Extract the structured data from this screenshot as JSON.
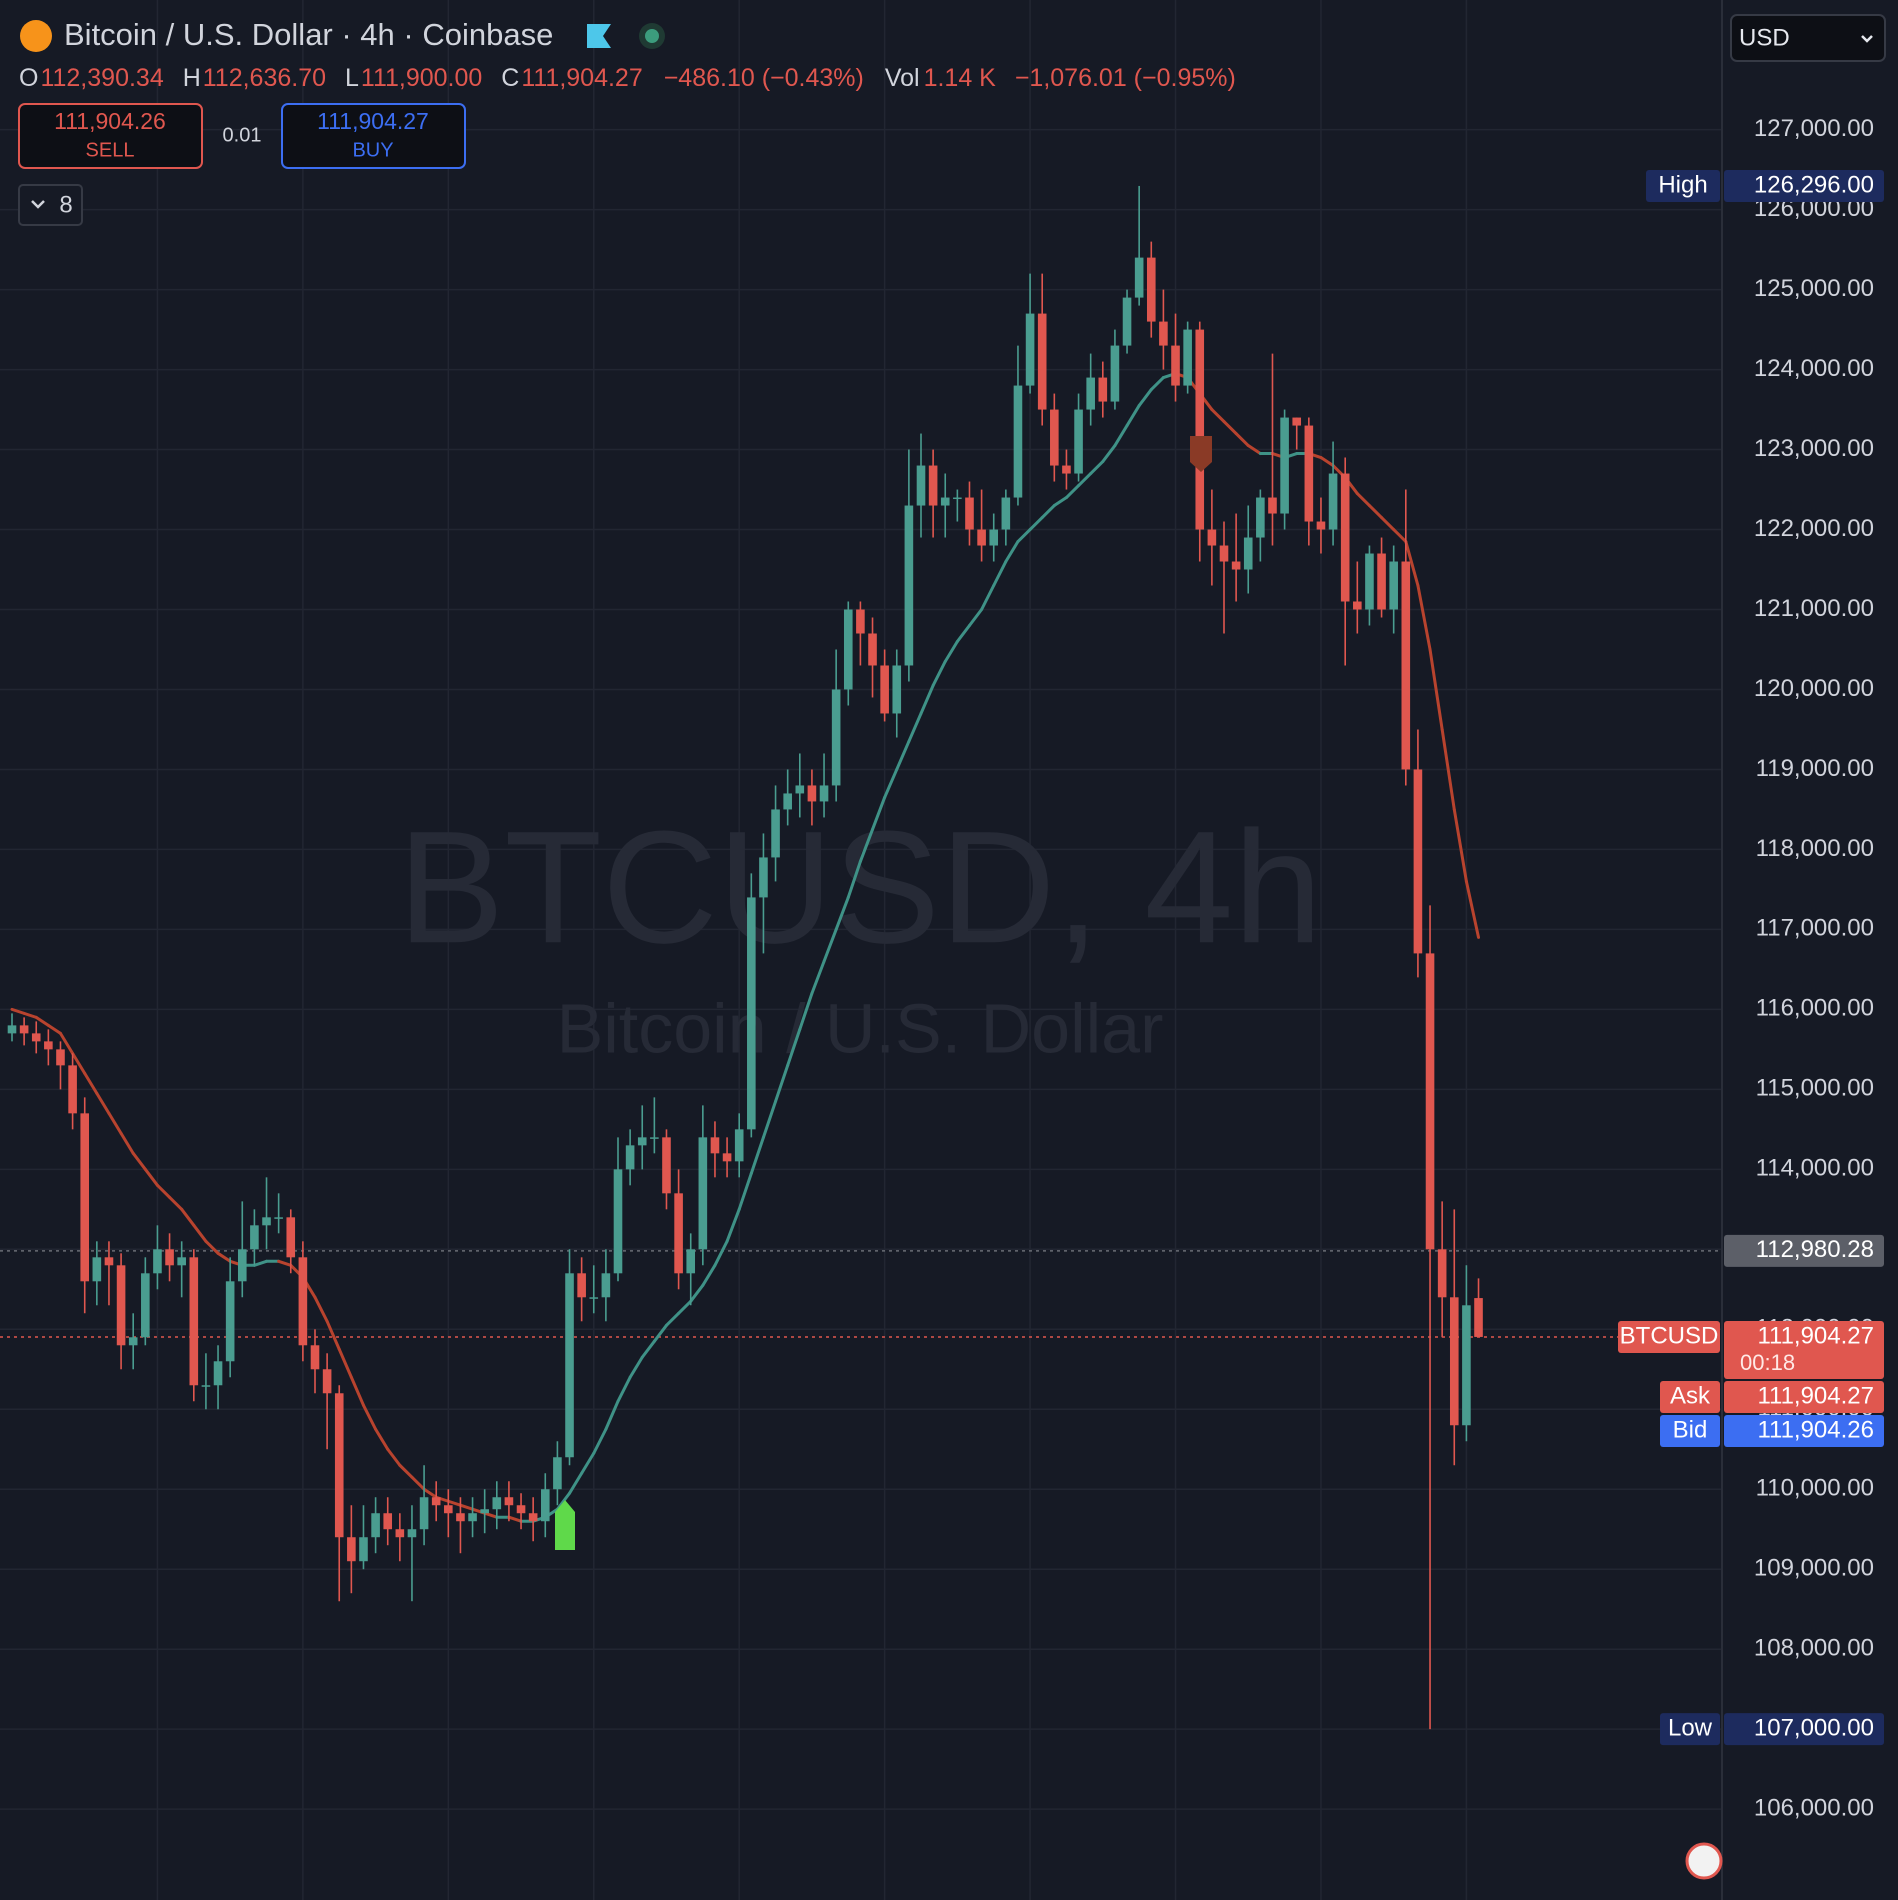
{
  "header": {
    "title": "Bitcoin / U.S. Dollar · 4h · Coinbase",
    "o_key": "O",
    "o": "112,390.34",
    "h_key": "H",
    "h": "112,636.70",
    "l_key": "L",
    "l": "111,900.00",
    "c_key": "C",
    "c": "111,904.27",
    "change": "−486.10 (−0.43%)",
    "vol_key": "Vol",
    "vol": "1.14 K",
    "vol_change": "−1,076.01 (−0.95%)",
    "sell_price": "111,904.26",
    "sell": "SELL",
    "spread": "0.01",
    "buy_price": "111,904.27",
    "buy": "BUY",
    "indicators": "8",
    "currency": "USD",
    "watermark": "BTCUSD, 4h",
    "watermark_sub": "Bitcoin / U.S. Dollar"
  },
  "chart_data": {
    "type": "candlestick",
    "up_color": "#4a9d90",
    "down_color": "#e0574f",
    "ma_up_color": "#3f9287",
    "ma_down_color": "#b8432e",
    "grid": true,
    "ylim": [
      104864,
      128621
    ],
    "yticks": [
      {
        "value": 106000,
        "label": "106,000.00"
      },
      {
        "value": 107000,
        "label": "107,000.00"
      },
      {
        "value": 108000,
        "label": "108,000.00"
      },
      {
        "value": 109000,
        "label": "109,000.00"
      },
      {
        "value": 110000,
        "label": "110,000.00"
      },
      {
        "value": 111000,
        "label": "111,000.00"
      },
      {
        "value": 112000,
        "label": "112,000.00"
      },
      {
        "value": 113000,
        "label": "113,000.00"
      },
      {
        "value": 114000,
        "label": "114,000.00"
      },
      {
        "value": 115000,
        "label": "115,000.00"
      },
      {
        "value": 116000,
        "label": "116,000.00"
      },
      {
        "value": 117000,
        "label": "117,000.00"
      },
      {
        "value": 118000,
        "label": "118,000.00"
      },
      {
        "value": 119000,
        "label": "119,000.00"
      },
      {
        "value": 120000,
        "label": "120,000.00"
      },
      {
        "value": 121000,
        "label": "121,000.00"
      },
      {
        "value": 122000,
        "label": "122,000.00"
      },
      {
        "value": 123000,
        "label": "123,000.00"
      },
      {
        "value": 124000,
        "label": "124,000.00"
      },
      {
        "value": 125000,
        "label": "125,000.00"
      },
      {
        "value": 126000,
        "label": "126,000.00"
      },
      {
        "value": 127000,
        "label": "127,000.00"
      }
    ],
    "open": [
      115700,
      115800,
      115700,
      115600,
      115500,
      115300,
      114700,
      112600,
      112900,
      112800,
      111800,
      111900,
      112700,
      113000,
      112800,
      112900,
      111300,
      111300,
      111600,
      112600,
      113000,
      113300,
      113400,
      113400,
      112900,
      111800,
      111500,
      111200,
      109400,
      109100,
      109400,
      109700,
      109500,
      109400,
      109500,
      109900,
      109800,
      109700,
      109600,
      109700,
      109750,
      109900,
      109800,
      109700,
      109600,
      110000,
      110400,
      112700,
      112400,
      112400,
      112700,
      114000,
      114300,
      114400,
      114400,
      113700,
      112700,
      113000,
      114400,
      114200,
      114100,
      114500,
      117400,
      117900,
      118500,
      118700,
      118800,
      118600,
      118800,
      120000,
      121000,
      120700,
      120300,
      119700,
      120300,
      122300,
      122800,
      122300,
      122400,
      122400,
      122000,
      121800,
      122000,
      122400,
      123800,
      124700,
      123500,
      122800,
      122700,
      123500,
      123900,
      123600,
      124300,
      124900,
      125400,
      124600,
      124300,
      123800,
      124500,
      122000,
      121800,
      121600,
      121500,
      121900,
      122400,
      122200,
      123400,
      123300,
      122100,
      122000,
      122700,
      121100,
      121000,
      121700,
      121000,
      121600,
      119000,
      116700,
      113000,
      112400,
      110800,
      112390.34
    ],
    "high": [
      115950,
      115900,
      115850,
      115750,
      115600,
      115450,
      114900,
      113100,
      113100,
      112950,
      112200,
      112900,
      113300,
      113200,
      113100,
      113000,
      111700,
      111800,
      112900,
      113600,
      113500,
      113900,
      113700,
      113500,
      113100,
      112000,
      111700,
      111300,
      109800,
      109800,
      109900,
      109900,
      109700,
      109800,
      110300,
      110100,
      110000,
      109900,
      109900,
      110000,
      110100,
      110100,
      109950,
      109900,
      110200,
      110600,
      113000,
      112900,
      112800,
      113000,
      114400,
      114500,
      114800,
      114900,
      114500,
      114000,
      113200,
      114800,
      114600,
      114400,
      114700,
      117700,
      118200,
      118800,
      119000,
      119200,
      119000,
      119200,
      120500,
      121100,
      121100,
      120900,
      120500,
      120500,
      123000,
      123200,
      123000,
      122700,
      122500,
      122600,
      122500,
      122200,
      122500,
      124300,
      125200,
      125200,
      123700,
      123000,
      123700,
      124200,
      124100,
      124500,
      125000,
      126296,
      125600,
      125000,
      124700,
      124600,
      124600,
      122500,
      122100,
      122200,
      122300,
      122500,
      124200,
      123500,
      123400,
      123400,
      122400,
      123100,
      122900,
      121600,
      121800,
      121900,
      121800,
      122500,
      119500,
      117300,
      113600,
      113500,
      112800,
      112636.7
    ],
    "low": [
      115600,
      115550,
      115450,
      115300,
      115000,
      114500,
      112200,
      112300,
      112300,
      111500,
      111500,
      111800,
      112500,
      112600,
      112400,
      111100,
      111000,
      111000,
      111400,
      112400,
      112800,
      113000,
      113200,
      112700,
      111600,
      111200,
      110500,
      108600,
      108700,
      109000,
      109200,
      109300,
      109100,
      108600,
      109300,
      109600,
      109400,
      109200,
      109400,
      109450,
      109500,
      109600,
      109500,
      109350,
      109400,
      109800,
      110300,
      112100,
      112200,
      112100,
      112600,
      113800,
      114000,
      114200,
      113500,
      112500,
      112300,
      112800,
      113900,
      113900,
      113900,
      114400,
      116700,
      117600,
      118300,
      118400,
      118300,
      118400,
      118600,
      119800,
      120300,
      119900,
      119600,
      119400,
      120100,
      121900,
      121900,
      121900,
      122100,
      121800,
      121600,
      121600,
      121800,
      122300,
      123700,
      123300,
      122600,
      122500,
      122600,
      123300,
      123400,
      123500,
      124200,
      124800,
      124400,
      124000,
      123600,
      123700,
      121600,
      121300,
      120700,
      121100,
      121200,
      121600,
      121800,
      122000,
      123000,
      121800,
      121700,
      121800,
      120300,
      120700,
      120800,
      120900,
      120700,
      118800,
      116400,
      107000,
      111900,
      110300,
      110600,
      111900
    ],
    "close": [
      115800,
      115700,
      115600,
      115500,
      115300,
      114700,
      112600,
      112900,
      112800,
      111800,
      111900,
      112700,
      113000,
      112800,
      112900,
      111300,
      111300,
      111600,
      112600,
      113000,
      113300,
      113400,
      113400,
      112900,
      111800,
      111500,
      111200,
      109400,
      109100,
      109400,
      109700,
      109500,
      109400,
      109500,
      109900,
      109800,
      109700,
      109600,
      109700,
      109750,
      109900,
      109800,
      109700,
      109600,
      110000,
      110400,
      112700,
      112400,
      112400,
      112700,
      114000,
      114300,
      114400,
      114400,
      113700,
      112700,
      113000,
      114400,
      114200,
      114100,
      114500,
      117400,
      117900,
      118500,
      118700,
      118800,
      118600,
      118800,
      120000,
      121000,
      120700,
      120300,
      119700,
      120300,
      122300,
      122800,
      122300,
      122400,
      122400,
      122000,
      121800,
      122000,
      122400,
      123800,
      124700,
      123500,
      122800,
      122700,
      123500,
      123900,
      123600,
      124300,
      124900,
      125400,
      124600,
      124300,
      123800,
      124500,
      122000,
      121800,
      121600,
      121500,
      121900,
      122400,
      122200,
      123400,
      123300,
      122100,
      122000,
      122700,
      121100,
      121000,
      121700,
      121000,
      121600,
      119000,
      116700,
      113000,
      112400,
      110800,
      112300,
      111904.27
    ],
    "ma": [
      116000,
      115950,
      115900,
      115800,
      115700,
      115450,
      115200,
      114950,
      114700,
      114450,
      114200,
      114000,
      113800,
      113650,
      113500,
      113300,
      113100,
      112950,
      112850,
      112800,
      112800,
      112850,
      112850,
      112800,
      112650,
      112400,
      112100,
      111750,
      111400,
      111050,
      110750,
      110500,
      110300,
      110150,
      110000,
      109900,
      109850,
      109800,
      109750,
      109700,
      109650,
      109650,
      109600,
      109600,
      109650,
      109750,
      109950,
      110200,
      110450,
      110750,
      111100,
      111400,
      111650,
      111850,
      112050,
      112200,
      112350,
      112550,
      112800,
      113100,
      113500,
      113950,
      114400,
      114850,
      115300,
      115750,
      116200,
      116600,
      117000,
      117400,
      117850,
      118250,
      118650,
      119000,
      119350,
      119700,
      120050,
      120350,
      120600,
      120800,
      121000,
      121300,
      121600,
      121850,
      122000,
      122150,
      122300,
      122400,
      122550,
      122700,
      122850,
      123050,
      123300,
      123550,
      123750,
      123900,
      123950,
      123900,
      123700,
      123500,
      123350,
      123200,
      123050,
      122950,
      122950,
      122900,
      122950,
      122950,
      122900,
      122800,
      122650,
      122450,
      122300,
      122150,
      122000,
      121850,
      121300,
      120500,
      119500,
      118500,
      117600,
      116900
    ],
    "price_labels": [
      {
        "tag": "High",
        "value": 126296,
        "label": "126,296.00",
        "color": "#1d2b5e"
      },
      {
        "value": 112980.28,
        "label": "112,980.28",
        "color": "#5c5f68",
        "line": "#6a6d75"
      },
      {
        "tag": "BTCUSD",
        "value": 111904.27,
        "label": "111,904.27",
        "countdown": "00:18",
        "color": "#e0574f",
        "line": "#e0574f"
      },
      {
        "tag": "Ask",
        "value": 111904.27,
        "label": "111,904.27",
        "color": "#e0574f"
      },
      {
        "tag": "Bid",
        "value": 111904.26,
        "label": "111,904.26",
        "color": "#3c6ef2"
      },
      {
        "tag": "Low",
        "value": 107000,
        "label": "107,000.00",
        "color": "#1d2b5e"
      }
    ]
  }
}
